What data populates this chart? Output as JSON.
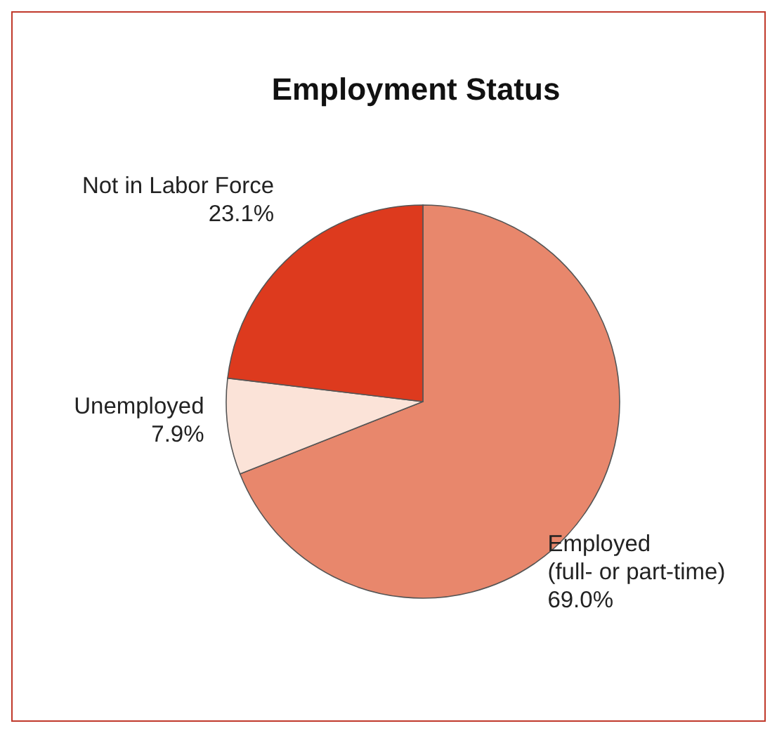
{
  "chart_data": {
    "type": "pie",
    "title": "Employment Status",
    "categories": [
      "Employed (full- or part-time)",
      "Unemployed",
      "Not in Labor Force"
    ],
    "values": [
      69.0,
      7.9,
      23.1
    ],
    "colors": [
      "#e8876c",
      "#fbe3d8",
      "#dd3a1e"
    ],
    "value_labels": [
      "69.0%",
      "7.9%",
      "23.1%"
    ],
    "legend": false
  }
}
